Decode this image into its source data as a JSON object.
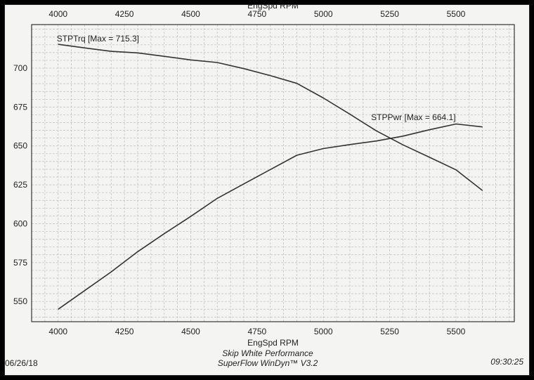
{
  "chart_data": {
    "type": "line",
    "xlabel": "EngSpd RPM",
    "x_ticks": [
      4000,
      4250,
      4500,
      4750,
      5000,
      5250,
      5500
    ],
    "y_ticks": [
      550,
      575,
      600,
      625,
      650,
      675,
      700
    ],
    "xlim": [
      3900,
      5720
    ],
    "ylim": [
      537,
      728
    ],
    "grid": true,
    "series": [
      {
        "name": "STPTrq [Max = 715.3]",
        "x": [
          4000,
          4100,
          4200,
          4300,
          4400,
          4500,
          4600,
          4700,
          4800,
          4900,
          5000,
          5100,
          5200,
          5300,
          5400,
          5500,
          5600
        ],
        "y": [
          715.3,
          713,
          710.8,
          709.8,
          707.6,
          705.3,
          703.6,
          699.7,
          695.2,
          690.2,
          680.8,
          670.4,
          659.7,
          650.7,
          642.7,
          634.6,
          621.3
        ]
      },
      {
        "name": "STPPwr [Max = 664.1]",
        "x": [
          4000,
          4100,
          4200,
          4300,
          4400,
          4500,
          4600,
          4700,
          4800,
          4900,
          5000,
          5100,
          5200,
          5300,
          5400,
          5500,
          5600
        ],
        "y": [
          545,
          557,
          569,
          582,
          593.6,
          604.7,
          616.3,
          625.6,
          634.8,
          644,
          648.3,
          650.9,
          653.2,
          656.3,
          660.4,
          664.1,
          662.2
        ]
      }
    ]
  },
  "footer": {
    "date": "06/26/18",
    "company": "Skip White Performance",
    "software": "SuperFlow WinDyn™ V3.2",
    "time": "09:30:25"
  },
  "colors": {
    "line": "#333333",
    "grid": "#bdbdbd",
    "paper": "#f4f4f2"
  }
}
